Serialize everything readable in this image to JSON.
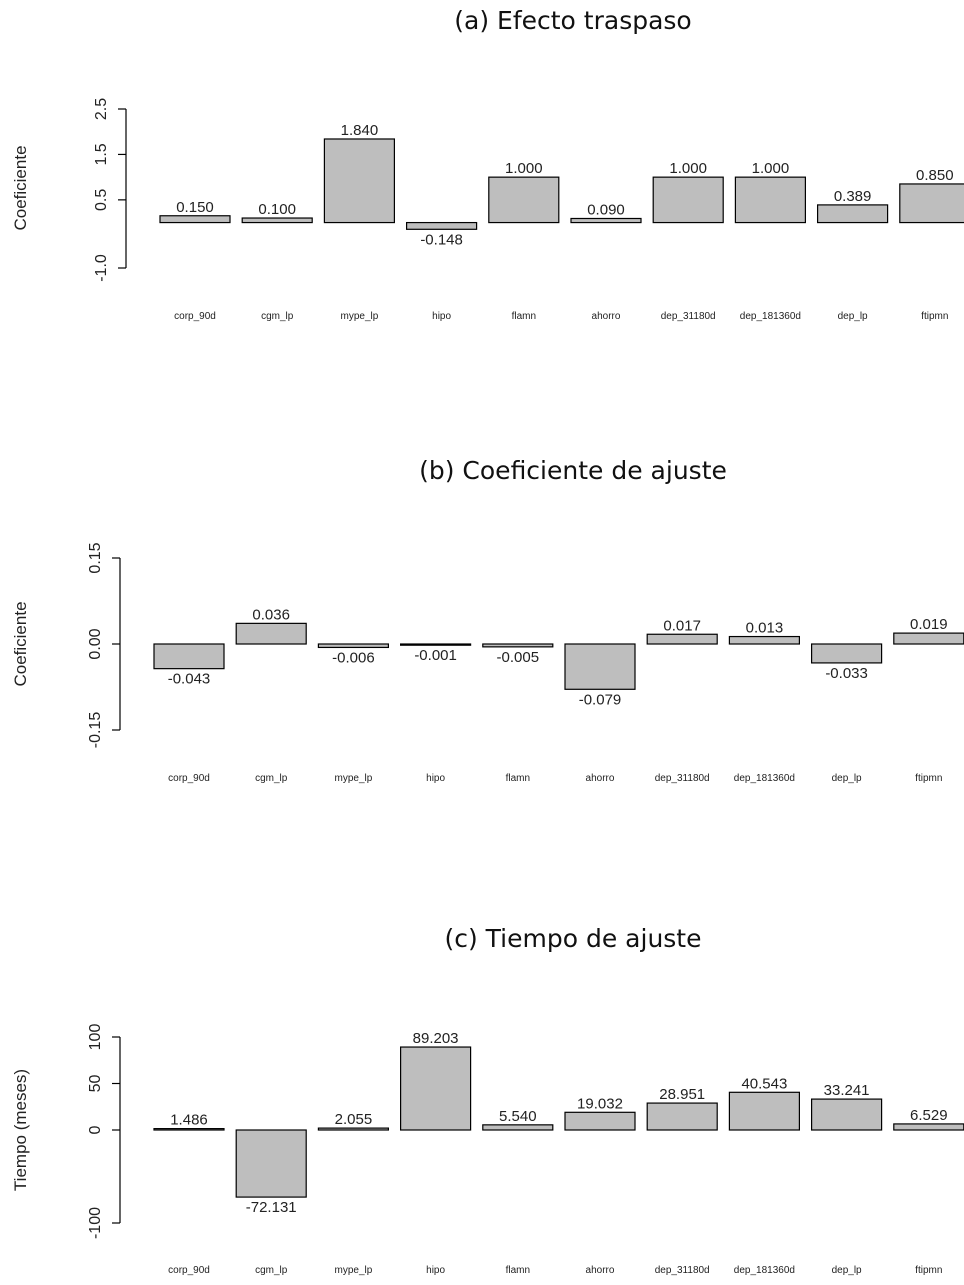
{
  "chart_data": [
    {
      "type": "bar",
      "title": "(a)  Efecto traspaso",
      "ylabel": "Coeficiente",
      "xlabel": "",
      "categories": [
        "corp_90d",
        "cgm_lp",
        "mype_lp",
        "hipo",
        "flamn",
        "ahorro",
        "dep_31180d",
        "dep_181360d",
        "dep_lp",
        "ftipmn"
      ],
      "values": [
        0.15,
        0.1,
        1.84,
        -0.148,
        1.0,
        0.09,
        1.0,
        1.0,
        0.389,
        0.85
      ],
      "value_labels": [
        "0.150",
        "0.100",
        "1.840",
        "-0.148",
        "1.000",
        "0.090",
        "1.000",
        "1.000",
        "0.389",
        "0.850"
      ],
      "yticks": [
        -1.0,
        0.5,
        1.5,
        2.5
      ],
      "ytick_labels": [
        "-1.0",
        "0.5",
        "1.5",
        "2.5"
      ],
      "ylim": [
        -1.0,
        2.5
      ],
      "grid": false,
      "bar_color": "#bebebe"
    },
    {
      "type": "bar",
      "title": "(b)  Coeficiente de ajuste",
      "ylabel": "Coeficiente",
      "xlabel": "",
      "categories": [
        "corp_90d",
        "cgm_lp",
        "mype_lp",
        "hipo",
        "flamn",
        "ahorro",
        "dep_31180d",
        "dep_181360d",
        "dep_lp",
        "ftipmn"
      ],
      "values": [
        -0.043,
        0.036,
        -0.006,
        -0.001,
        -0.005,
        -0.079,
        0.017,
        0.013,
        -0.033,
        0.019
      ],
      "value_labels": [
        "-0.043",
        "0.036",
        "-0.006",
        "-0.001",
        "-0.005",
        "-0.079",
        "0.017",
        "0.013",
        "-0.033",
        "0.019"
      ],
      "yticks": [
        -0.15,
        0.0,
        0.15
      ],
      "ytick_labels": [
        "-0.15",
        "0.00",
        "0.15"
      ],
      "ylim": [
        -0.15,
        0.15
      ],
      "grid": false,
      "bar_color": "#bebebe"
    },
    {
      "type": "bar",
      "title": "(c)  Tiempo de ajuste",
      "ylabel": "Tiempo (meses)",
      "xlabel": "",
      "categories": [
        "corp_90d",
        "cgm_lp",
        "mype_lp",
        "hipo",
        "flamn",
        "ahorro",
        "dep_31180d",
        "dep_181360d",
        "dep_lp",
        "ftipmn"
      ],
      "values": [
        1.486,
        -72.131,
        2.055,
        89.203,
        5.54,
        19.032,
        28.951,
        40.543,
        33.241,
        6.529
      ],
      "value_labels": [
        "1.486",
        "-72.131",
        "2.055",
        "89.203",
        "5.540",
        "19.032",
        "28.951",
        "40.543",
        "33.241",
        "6.529"
      ],
      "yticks": [
        -100,
        0,
        50,
        100
      ],
      "ytick_labels": [
        "-100",
        "0",
        "50",
        "100"
      ],
      "ylim": [
        -100,
        100
      ],
      "grid": false,
      "bar_color": "#bebebe"
    }
  ]
}
